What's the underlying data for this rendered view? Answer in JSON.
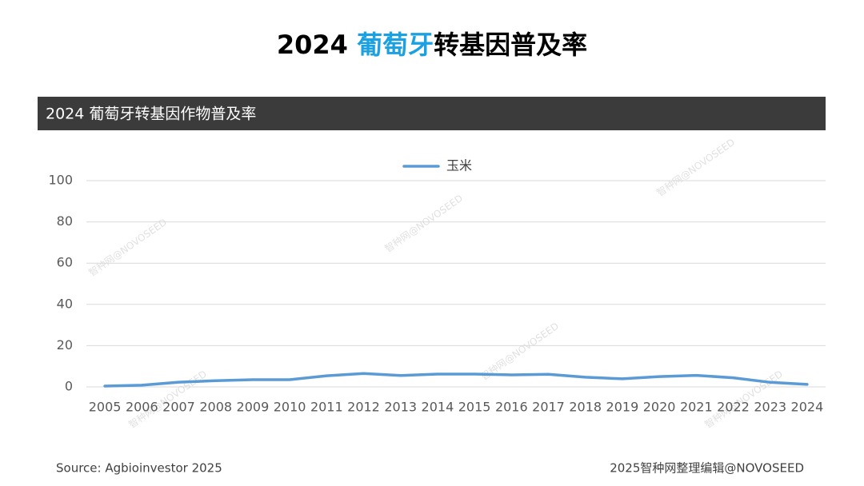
{
  "page_title": [
    "2024 ",
    "葡萄牙",
    "转基因普及率"
  ],
  "source": "Source: Agbioinvestor 2025",
  "credit": "2025智种网整理编辑@NOVOSEED",
  "watermark": "智种网@NOVOSEED",
  "chart_data": {
    "type": "line",
    "title": "2024 葡萄牙转基因作物普及率",
    "categories": [
      "2005",
      "2006",
      "2007",
      "2008",
      "2009",
      "2010",
      "2011",
      "2012",
      "2013",
      "2014",
      "2015",
      "2016",
      "2017",
      "2018",
      "2019",
      "2020",
      "2021",
      "2022",
      "2023",
      "2024"
    ],
    "series": [
      {
        "name": "玉米",
        "color": "#5b9bd5",
        "values": [
          0.4,
          0.8,
          2.3,
          3,
          3.5,
          3.5,
          5.4,
          6.5,
          5.5,
          6.2,
          6.2,
          5.8,
          6.1,
          4.7,
          3.9,
          5,
          5.6,
          4.4,
          2.2,
          1.2
        ]
      }
    ],
    "ylim": [
      0,
      100
    ],
    "yticks": [
      0,
      20,
      40,
      60,
      80,
      100
    ],
    "grid": true,
    "legend": "top"
  }
}
